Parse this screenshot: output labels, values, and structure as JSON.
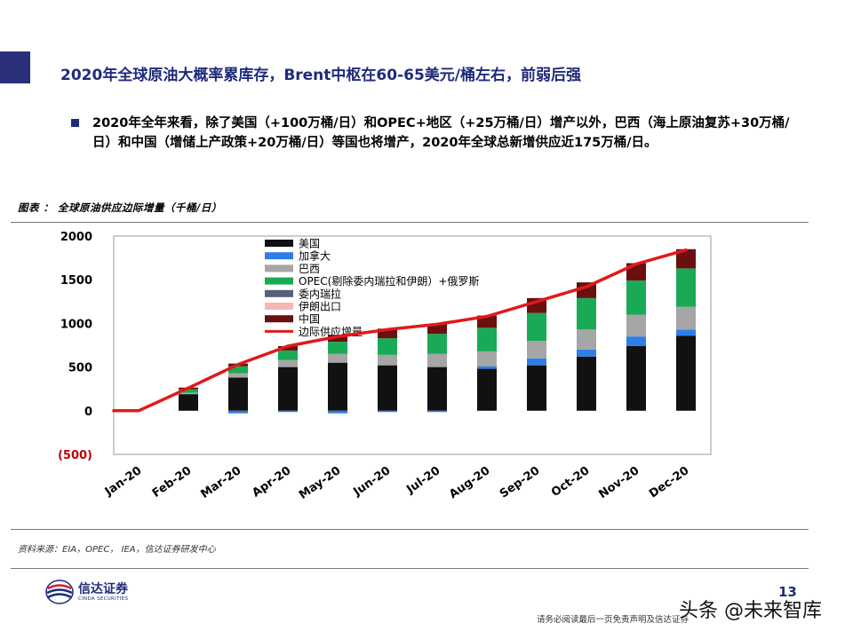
{
  "slide": {
    "title": "2020年全球原油大概率累库存，Brent中枢在60-65美元/桶左右，前弱后强",
    "bullet": "2020年全年来看，除了美国（+100万桶/日）和OPEC+地区（+25万桶/日）增产以外，巴西（海上原油复苏+30万桶/日）和中国（增储上产政策+20万桶/日）等国也将增产，2020年全球总新增供应近175万桶/日。",
    "figure_caption": "图表 ： 全球原油供应边际增量（千桶/日）",
    "source_note": "资料来源：EIA，OPEC， IEA，信达证券研发中心",
    "page_number": "13",
    "disclaimer": "请务必阅读最后一页免责声明及信达证券",
    "watermark": "头条 @未来智库"
  },
  "logo": {
    "cn": "信达证券",
    "en": "CINDA SECURITIES"
  },
  "colors": {
    "title": "#1f2b7b",
    "us": "#111111",
    "canada": "#2f7ee8",
    "brazil": "#a6a6a6",
    "opec": "#1aaa55",
    "venezuela": "#55617a",
    "iran": "#f4b8b8",
    "china": "#6b0f0f",
    "line": "#e01a1a"
  },
  "chart_data": {
    "type": "bar",
    "stacked": true,
    "categories": [
      "Jan-20",
      "Feb-20",
      "Mar-20",
      "Apr-20",
      "May-20",
      "Jun-20",
      "Jul-20",
      "Aug-20",
      "Sep-20",
      "Oct-20",
      "Nov-20",
      "Dec-20"
    ],
    "ylim": [
      -500,
      2000
    ],
    "yticks": [
      "(500)",
      "0",
      "500",
      "1000",
      "1500",
      "2000"
    ],
    "series": [
      {
        "name": "美国",
        "color": "#111111",
        "values": [
          0,
          190,
          380,
          500,
          550,
          520,
          500,
          480,
          520,
          620,
          740,
          860
        ]
      },
      {
        "name": "加拿大",
        "color": "#2f7ee8",
        "values": [
          0,
          0,
          -30,
          -15,
          -30,
          -15,
          -15,
          30,
          80,
          80,
          110,
          70
        ]
      },
      {
        "name": "巴西",
        "color": "#a6a6a6",
        "values": [
          0,
          15,
          50,
          80,
          100,
          120,
          150,
          170,
          200,
          230,
          250,
          260
        ]
      },
      {
        "name": "OPEC(剔除委内瑞拉和伊朗）+俄罗斯",
        "color": "#1aaa55",
        "values": [
          0,
          40,
          80,
          110,
          140,
          190,
          230,
          270,
          320,
          360,
          390,
          440
        ]
      },
      {
        "name": "委内瑞拉",
        "color": "#55617a",
        "values": [
          0,
          0,
          0,
          0,
          0,
          0,
          0,
          0,
          0,
          0,
          0,
          0
        ]
      },
      {
        "name": "伊朗出口",
        "color": "#f4b8b8",
        "values": [
          0,
          0,
          0,
          0,
          0,
          0,
          0,
          0,
          0,
          0,
          0,
          0
        ]
      },
      {
        "name": "中国",
        "color": "#6b0f0f",
        "values": [
          0,
          20,
          30,
          50,
          80,
          110,
          110,
          140,
          170,
          180,
          200,
          220
        ]
      }
    ],
    "line": {
      "name": "边际供应增量",
      "color": "#e01a1a",
      "values": [
        0,
        260,
        530,
        740,
        850,
        930,
        990,
        1080,
        1250,
        1420,
        1680,
        1840
      ]
    },
    "grid": false,
    "legend": "top-left inside plot"
  }
}
